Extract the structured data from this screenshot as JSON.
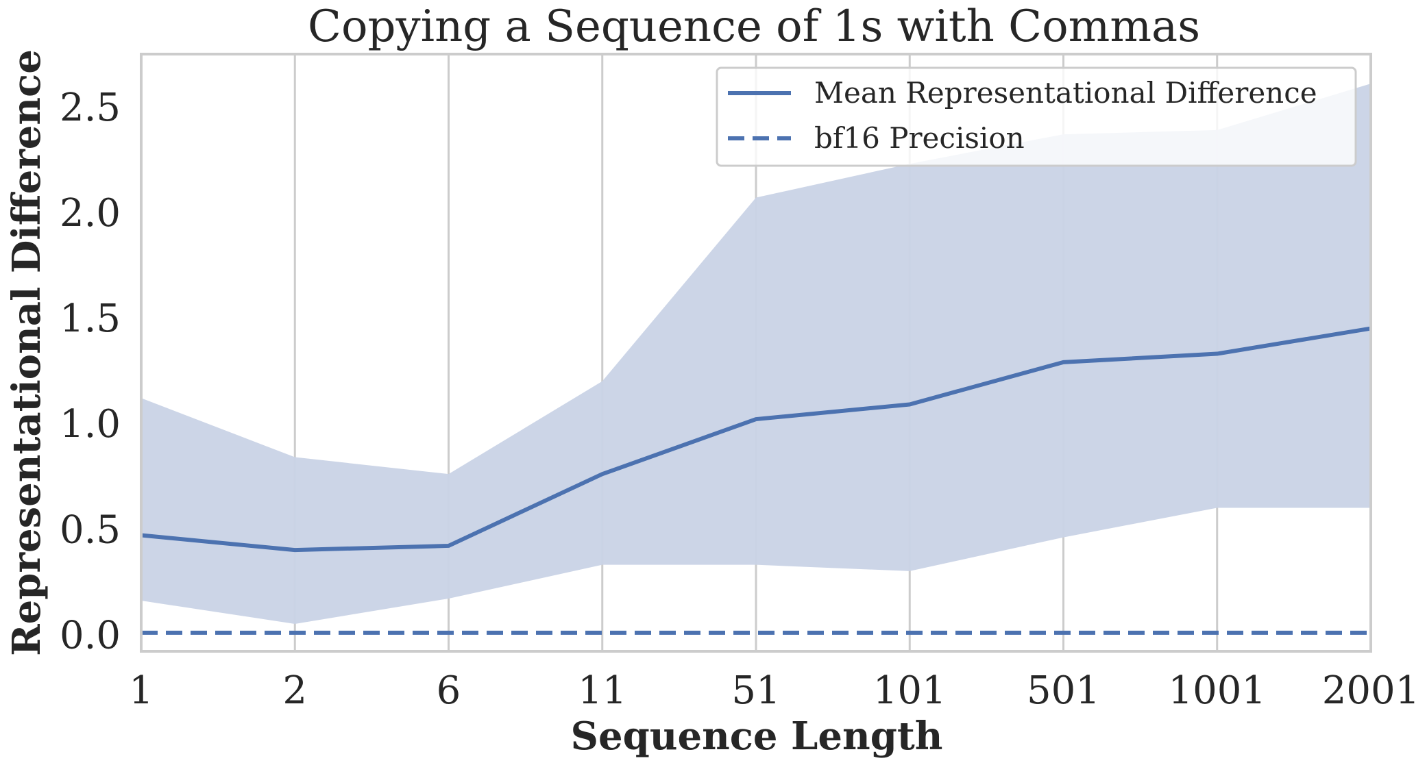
{
  "chart_data": {
    "type": "line",
    "title": "Copying a Sequence of 1s with Commas",
    "xlabel": "Sequence Length",
    "ylabel": "Representational Difference",
    "categories": [
      "1",
      "2",
      "6",
      "11",
      "51",
      "101",
      "501",
      "1001",
      "2001"
    ],
    "ylim": [
      -0.08,
      2.75
    ],
    "yticks": [
      "0.0",
      "0.5",
      "1.0",
      "1.5",
      "2.0",
      "2.5"
    ],
    "grid": "vertical",
    "legend_position": "top-right",
    "series": [
      {
        "name": "Mean Representational Difference",
        "style": "solid",
        "values": [
          0.47,
          0.4,
          0.42,
          0.76,
          1.02,
          1.09,
          1.29,
          1.33,
          1.45
        ],
        "band_lower": [
          0.16,
          0.05,
          0.17,
          0.33,
          0.33,
          0.3,
          0.46,
          0.6,
          0.6
        ],
        "band_upper": [
          1.12,
          0.84,
          0.76,
          1.2,
          2.07,
          2.23,
          2.37,
          2.39,
          2.61
        ]
      },
      {
        "name": "bf16 Precision",
        "style": "dashed",
        "values": [
          0.008,
          0.008,
          0.008,
          0.008,
          0.008,
          0.008,
          0.008,
          0.008,
          0.008
        ]
      }
    ],
    "colors": {
      "line": "#4c72b0",
      "band": "#c9d3e6",
      "grid": "#cccccc",
      "spine": "#cccccc",
      "text": "#262626"
    }
  }
}
